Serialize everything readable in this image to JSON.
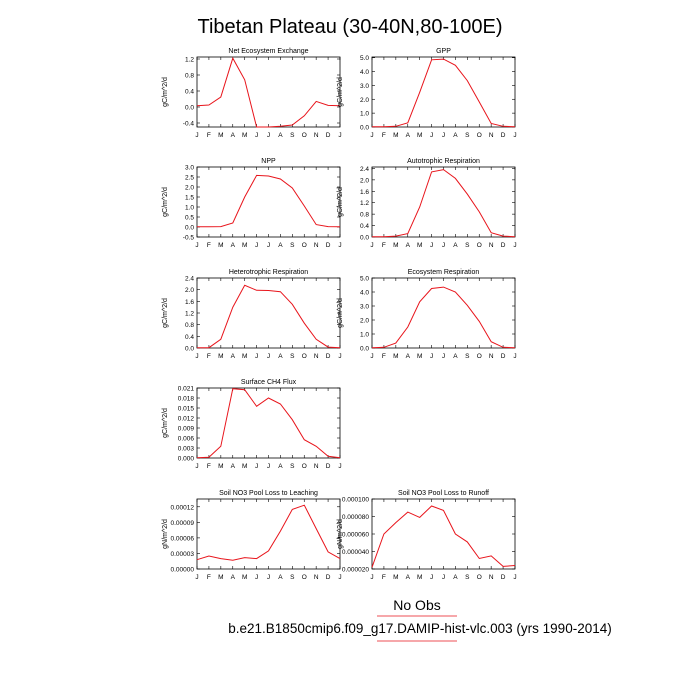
{
  "figure": {
    "title": "Tibetan Plateau (30-40N,80-100E)",
    "legend_label": "No Obs",
    "footer": "b.e21.B1850cmip6.f09_g17.DAMIP-hist-vlc.003 (yrs 1990-2014)",
    "line_color": "#e8141b"
  },
  "chart_data": [
    {
      "type": "line",
      "title": "Net Ecosystem Exchange",
      "ylabel": "gC/m^2/d",
      "x": [
        "J",
        "F",
        "M",
        "A",
        "M",
        "J",
        "J",
        "A",
        "S",
        "O",
        "N",
        "D",
        "J"
      ],
      "ylim": [
        -0.5,
        1.25
      ],
      "yticks": [
        "1.2",
        "0.8",
        "0.4",
        "0.0",
        "-0.4"
      ],
      "ytick_values": [
        1.2,
        0.8,
        0.4,
        0.0,
        -0.4
      ],
      "values": [
        0.03,
        0.05,
        0.25,
        1.22,
        0.68,
        -0.55,
        -0.55,
        -0.48,
        -0.45,
        -0.22,
        0.14,
        0.04,
        0.03
      ]
    },
    {
      "type": "line",
      "title": "GPP",
      "ylabel": "gC/m^2/d",
      "x": [
        "J",
        "F",
        "M",
        "A",
        "M",
        "J",
        "J",
        "A",
        "S",
        "O",
        "N",
        "D",
        "J"
      ],
      "ylim": [
        0,
        5.05
      ],
      "yticks": [
        "5.0",
        "4.0",
        "3.0",
        "2.0",
        "1.0",
        "0.0"
      ],
      "ytick_values": [
        5,
        4,
        3,
        2,
        1,
        0
      ],
      "values": [
        0.02,
        0.02,
        0.05,
        0.3,
        2.5,
        4.85,
        4.9,
        4.45,
        3.35,
        1.8,
        0.25,
        0.05,
        0.02
      ]
    },
    {
      "type": "line",
      "title": "NPP",
      "ylabel": "gC/m^2/d",
      "x": [
        "J",
        "F",
        "M",
        "A",
        "M",
        "J",
        "J",
        "A",
        "S",
        "O",
        "N",
        "D",
        "J"
      ],
      "ylim": [
        -0.5,
        3.0
      ],
      "yticks": [
        "3.0",
        "2.5",
        "2.0",
        "1.5",
        "1.0",
        "0.5",
        "0.0",
        "-0.5"
      ],
      "ytick_values": [
        3.0,
        2.5,
        2.0,
        1.5,
        1.0,
        0.5,
        0.0,
        -0.5
      ],
      "values": [
        0.01,
        0.01,
        0.02,
        0.2,
        1.5,
        2.58,
        2.55,
        2.4,
        1.95,
        1.05,
        0.12,
        0.02,
        0.01
      ]
    },
    {
      "type": "line",
      "title": "Autotrophic Respiration",
      "ylabel": "gC/m^2/d",
      "x": [
        "J",
        "F",
        "M",
        "A",
        "M",
        "J",
        "J",
        "A",
        "S",
        "O",
        "N",
        "D",
        "J"
      ],
      "ylim": [
        0,
        2.45
      ],
      "yticks": [
        "2.4",
        "2.0",
        "1.6",
        "1.2",
        "0.8",
        "0.4",
        "0.0"
      ],
      "ytick_values": [
        2.4,
        2.0,
        1.6,
        1.2,
        0.8,
        0.4,
        0.0
      ],
      "values": [
        0.01,
        0.01,
        0.03,
        0.12,
        1.05,
        2.28,
        2.36,
        2.05,
        1.5,
        0.88,
        0.15,
        0.03,
        0.01
      ]
    },
    {
      "type": "line",
      "title": "Heterotrophic Respiration",
      "ylabel": "gC/m^2/d",
      "x": [
        "J",
        "F",
        "M",
        "A",
        "M",
        "J",
        "J",
        "A",
        "S",
        "O",
        "N",
        "D",
        "J"
      ],
      "ylim": [
        0,
        2.4
      ],
      "yticks": [
        "2.4",
        "2.0",
        "1.6",
        "1.2",
        "0.8",
        "0.4",
        "0.0"
      ],
      "ytick_values": [
        2.4,
        2.0,
        1.6,
        1.2,
        0.8,
        0.4,
        0.0
      ],
      "values": [
        0.01,
        0.01,
        0.3,
        1.4,
        2.15,
        1.98,
        1.97,
        1.93,
        1.5,
        0.85,
        0.3,
        0.03,
        0.01
      ]
    },
    {
      "type": "line",
      "title": "Ecosystem Respiration",
      "ylabel": "gC/m^2/d",
      "x": [
        "J",
        "F",
        "M",
        "A",
        "M",
        "J",
        "J",
        "A",
        "S",
        "O",
        "N",
        "D",
        "J"
      ],
      "ylim": [
        0,
        5.0
      ],
      "yticks": [
        "5.0",
        "4.0",
        "3.0",
        "2.0",
        "1.0",
        "0.0"
      ],
      "ytick_values": [
        5,
        4,
        3,
        2,
        1,
        0
      ],
      "values": [
        0.02,
        0.05,
        0.35,
        1.5,
        3.3,
        4.25,
        4.35,
        4.0,
        3.05,
        1.9,
        0.45,
        0.05,
        0.02
      ]
    },
    {
      "type": "line",
      "title": "Surface CH4 Flux",
      "ylabel": "gC/m^2/d",
      "x": [
        "J",
        "F",
        "M",
        "A",
        "M",
        "J",
        "J",
        "A",
        "S",
        "O",
        "N",
        "D",
        "J"
      ],
      "ylim": [
        0,
        0.021
      ],
      "yticks": [
        "0.021",
        "0.018",
        "0.015",
        "0.012",
        "0.009",
        "0.006",
        "0.003",
        "0.000"
      ],
      "ytick_values": [
        0.021,
        0.018,
        0.015,
        0.012,
        0.009,
        0.006,
        0.003,
        0.0
      ],
      "values": [
        0.0001,
        0.0002,
        0.0035,
        0.0208,
        0.0205,
        0.0155,
        0.018,
        0.0162,
        0.0115,
        0.0055,
        0.0035,
        0.0005,
        0.0001
      ]
    },
    {
      "type": "line",
      "title": "Soil NO3 Pool Loss to Leaching",
      "ylabel": "gN/m^2/d",
      "x": [
        "J",
        "F",
        "M",
        "A",
        "M",
        "J",
        "J",
        "A",
        "S",
        "O",
        "N",
        "D",
        "J"
      ],
      "ylim": [
        0,
        0.000135
      ],
      "yticks": [
        "0.00012",
        "0.00009",
        "0.00006",
        "0.00003",
        "0.00000"
      ],
      "ytick_values": [
        0.00012,
        9e-05,
        6e-05,
        3e-05,
        0.0
      ],
      "values": [
        1.8e-05,
        2.5e-05,
        2e-05,
        1.7e-05,
        2.2e-05,
        2e-05,
        3.5e-05,
        7.3e-05,
        0.000115,
        0.000123,
        7.8e-05,
        3.3e-05,
        2e-05
      ]
    },
    {
      "type": "line",
      "title": "Soil NO3 Pool Loss to Runoff",
      "ylabel": "gN/m^2/d",
      "x": [
        "J",
        "F",
        "M",
        "A",
        "M",
        "J",
        "J",
        "A",
        "S",
        "O",
        "N",
        "D",
        "J"
      ],
      "ylim": [
        2e-05,
        0.0001
      ],
      "yticks": [
        "0.000100",
        "0.000080",
        "0.000060",
        "0.000040",
        "0.000020"
      ],
      "ytick_values": [
        0.0001,
        8e-05,
        6e-05,
        4e-05,
        2e-05
      ],
      "values": [
        2.2e-05,
        6e-05,
        7.3e-05,
        8.5e-05,
        7.9e-05,
        9.2e-05,
        8.7e-05,
        6e-05,
        5.1e-05,
        3.2e-05,
        3.5e-05,
        2.3e-05,
        2.4e-05
      ]
    }
  ]
}
